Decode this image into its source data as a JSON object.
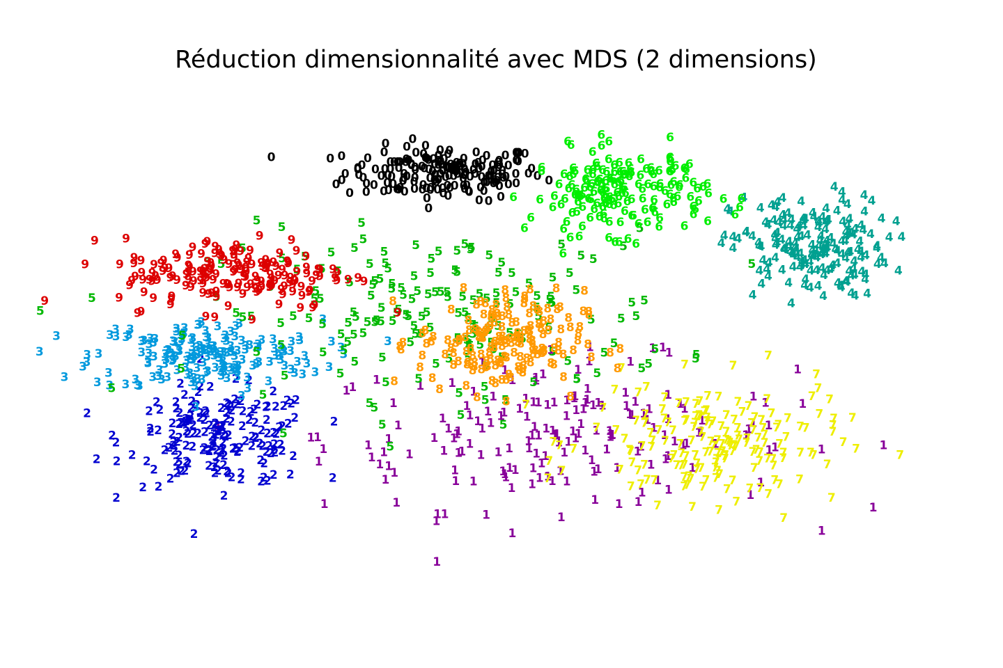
{
  "chart_data": {
    "type": "scatter",
    "title": "Réduction dimensionnalité avec MDS (2 dimensions)",
    "xlabel": "",
    "ylabel": "",
    "axes_visible": false,
    "grid": false,
    "legend": "none",
    "xlim": [
      -1.0,
      1.0
    ],
    "ylim": [
      -1.0,
      1.0
    ],
    "marker": "digit label",
    "colors": {
      "0": "#000000",
      "1": "#880099",
      "2": "#0000d0",
      "3": "#0099dd",
      "4": "#00a090",
      "5": "#00b800",
      "6": "#00ee00",
      "7": "#eeee00",
      "8": "#ff9900",
      "9": "#dd0000"
    },
    "series": [
      {
        "label": "0",
        "centroid": [
          -0.12,
          0.64
        ],
        "spread": [
          0.19,
          0.09
        ],
        "count": 178
      },
      {
        "label": "1",
        "centroid": [
          0.12,
          -0.32
        ],
        "spread": [
          0.45,
          0.25
        ],
        "count": 182
      },
      {
        "label": "2",
        "centroid": [
          -0.59,
          -0.33
        ],
        "spread": [
          0.18,
          0.16
        ],
        "count": 177
      },
      {
        "label": "3",
        "centroid": [
          -0.62,
          -0.03
        ],
        "spread": [
          0.22,
          0.12
        ],
        "count": 183
      },
      {
        "label": "4",
        "centroid": [
          0.65,
          0.37
        ],
        "spread": [
          0.15,
          0.17
        ],
        "count": 181
      },
      {
        "label": "5",
        "centroid": [
          -0.12,
          0.12
        ],
        "spread": [
          0.45,
          0.28
        ],
        "count": 182
      },
      {
        "label": "6",
        "centroid": [
          0.25,
          0.57
        ],
        "spread": [
          0.17,
          0.14
        ],
        "count": 181
      },
      {
        "label": "7",
        "centroid": [
          0.45,
          -0.35
        ],
        "spread": [
          0.24,
          0.2
        ],
        "count": 179
      },
      {
        "label": "8",
        "centroid": [
          0.0,
          0.02
        ],
        "spread": [
          0.16,
          0.17
        ],
        "count": 174
      },
      {
        "label": "9",
        "centroid": [
          -0.56,
          0.27
        ],
        "spread": [
          0.22,
          0.12
        ],
        "count": 180
      }
    ]
  }
}
